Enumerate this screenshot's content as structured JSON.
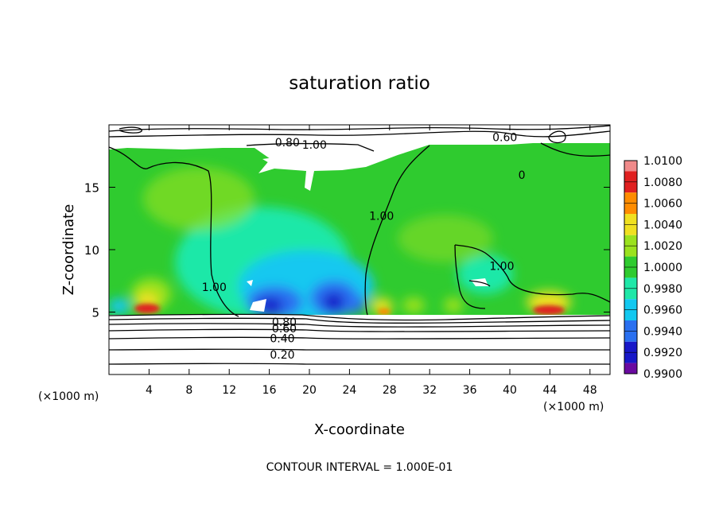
{
  "chart_data": {
    "type": "heatmap",
    "title": "saturation ratio",
    "xlabel": "X-coordinate",
    "ylabel": "Z-coordinate",
    "x_unit_note": "(×1000 m)",
    "y_unit_note": "(×1000 m)",
    "footer": "CONTOUR INTERVAL = 1.000E-01",
    "xlim": [
      0,
      50
    ],
    "ylim": [
      0,
      20
    ],
    "x_ticks": [
      4,
      8,
      12,
      16,
      20,
      24,
      28,
      32,
      36,
      40,
      44,
      48
    ],
    "y_ticks": [
      5,
      10,
      15
    ],
    "colorbar": {
      "levels": [
        "1.0100",
        "1.0080",
        "1.0060",
        "1.0040",
        "1.0020",
        "1.0000",
        "0.9980",
        "0.9960",
        "0.9940",
        "0.9920",
        "0.9900"
      ],
      "colors": [
        "#f08a8a",
        "#e02020",
        "#ff8c00",
        "#f0e020",
        "#9be21e",
        "#2fcb2f",
        "#1fe8a8",
        "#12c8f0",
        "#2a70f0",
        "#1818c8",
        "#6a0aa0"
      ]
    },
    "contour_labels": [
      {
        "text": "0.60",
        "x": 39.5,
        "y": 19.0
      },
      {
        "text": "0.80",
        "x": 17.8,
        "y": 18.6
      },
      {
        "text": "1.00",
        "x": 20.5,
        "y": 18.4
      },
      {
        "text": "0",
        "x": 41.2,
        "y": 16.0
      },
      {
        "text": "1.00",
        "x": 27.2,
        "y": 12.7
      },
      {
        "text": "1.00",
        "x": 39.2,
        "y": 8.7
      },
      {
        "text": "1.00",
        "x": 10.5,
        "y": 7.0
      },
      {
        "text": "0.80",
        "x": 17.5,
        "y": 4.2
      },
      {
        "text": "0.60",
        "x": 17.5,
        "y": 3.7
      },
      {
        "text": "0.40",
        "x": 17.3,
        "y": 2.9
      },
      {
        "text": "0.20",
        "x": 17.3,
        "y": 1.6
      }
    ]
  }
}
